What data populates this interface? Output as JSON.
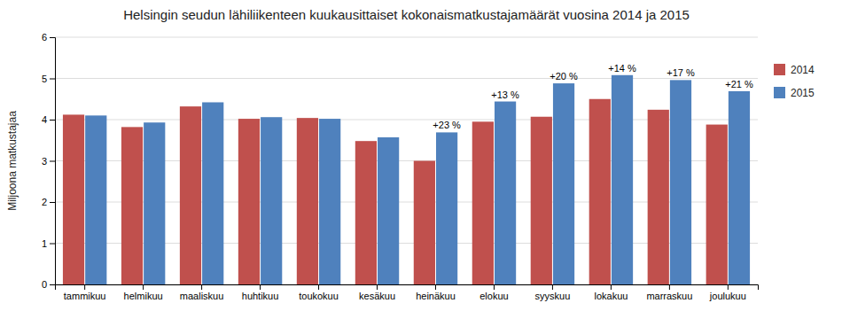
{
  "chart_data": {
    "type": "bar",
    "title": "Helsingin seudun lähiliikenteen kuukausittaiset kokonaismatkustajamäärät  vuosina 2014 ja 2015",
    "ylabel": "Miljoona matkustajaa",
    "categories": [
      "tammikuu",
      "helmikuu",
      "maaliskuu",
      "huhtikuu",
      "toukokuu",
      "kesäkuu",
      "heinäkuu",
      "elokuu",
      "syyskuu",
      "lokakuu",
      "marraskuu",
      "joulukuu"
    ],
    "series": [
      {
        "name": "2014",
        "color": "#C0504D",
        "values": [
          4.12,
          3.82,
          4.32,
          4.02,
          4.04,
          3.48,
          3.0,
          3.95,
          4.07,
          4.5,
          4.24,
          3.88
        ]
      },
      {
        "name": "2015",
        "color": "#4F81BD",
        "values": [
          4.1,
          3.93,
          4.42,
          4.06,
          4.02,
          3.57,
          3.69,
          4.44,
          4.88,
          5.08,
          4.96,
          4.69
        ]
      }
    ],
    "annotations": [
      null,
      null,
      null,
      null,
      null,
      null,
      "+23 %",
      "+13 %",
      "+20 %",
      "+14 %",
      "+17 %",
      "+21 %"
    ],
    "ylim": [
      0,
      6
    ],
    "yticks": [
      0,
      1,
      2,
      3,
      4,
      5,
      6
    ],
    "grid": true,
    "legend": "right"
  }
}
